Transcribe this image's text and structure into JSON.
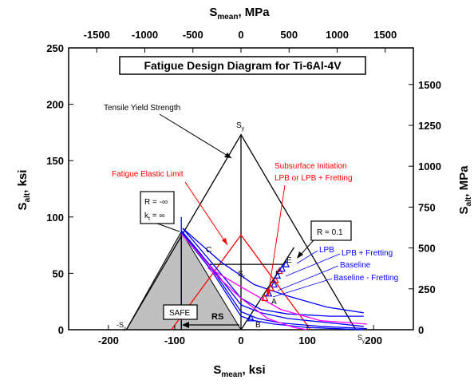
{
  "chart_data": {
    "type": "line",
    "title": "Fatigue Design Diagram for Ti-6Al-4V",
    "x_axis_bottom": {
      "label_main": "S",
      "label_sub": "mean",
      "label_unit": ", ksi",
      "xlim": [
        -260,
        260
      ],
      "ticks": [
        -200,
        -100,
        0,
        100,
        200
      ],
      "tick_labels": [
        "-200",
        "-100",
        "0",
        "100",
        "200"
      ]
    },
    "x_axis_top": {
      "label_main": "S",
      "label_sub": "mean",
      "label_unit": ", MPa",
      "ticks": [
        -1500,
        -1000,
        -500,
        0,
        500,
        1000,
        1500
      ],
      "tick_labels": [
        "-1500",
        "-1000",
        "-500",
        "0",
        "500",
        "1000",
        "1500"
      ]
    },
    "y_axis_left": {
      "label_main": "S",
      "label_sub": "alt",
      "label_unit": ", ksi",
      "ylim": [
        0,
        250
      ],
      "ticks": [
        0,
        50,
        100,
        150,
        200,
        250
      ],
      "tick_labels": [
        "0",
        "50",
        "100",
        "150",
        "200",
        "250"
      ]
    },
    "y_axis_right": {
      "label_main": "S",
      "label_sub": "alt",
      "label_unit": ", MPa",
      "ticks": [
        0,
        250,
        500,
        750,
        1000,
        1250,
        1500
      ],
      "tick_labels": [
        "0",
        "250",
        "500",
        "750",
        "1000",
        "1250",
        "1500"
      ]
    },
    "grid": false,
    "lines": [
      {
        "name": "yield-triangle",
        "color": "#000000",
        "points": [
          [
            -173,
            0
          ],
          [
            0,
            173
          ],
          [
            173,
            0
          ]
        ]
      },
      {
        "name": "axis-vertical",
        "color": "#000000",
        "points": [
          [
            0,
            0
          ],
          [
            0,
            173
          ]
        ]
      },
      {
        "name": "elastic-limit",
        "color": "#ff0000",
        "points": [
          [
            -105,
            0
          ],
          [
            0,
            84
          ],
          [
            105,
            0
          ]
        ]
      },
      {
        "name": "r-010-line",
        "color": "#000000",
        "points": [
          [
            0,
            0
          ],
          [
            80,
            73
          ]
        ]
      },
      {
        "name": "c-e-line",
        "color": "#000000",
        "points": [
          [
            -50,
            58
          ],
          [
            65,
            58
          ]
        ]
      },
      {
        "name": "vertical-blue",
        "color": "#0000ff",
        "points": [
          [
            -90,
            0
          ],
          [
            -90,
            100
          ]
        ]
      },
      {
        "name": "vertical-black",
        "color": "#000000",
        "points": [
          [
            -90,
            0
          ],
          [
            -90,
            86
          ]
        ]
      },
      {
        "name": "LPB",
        "color": "#0000ff",
        "points": [
          [
            -88,
            90
          ],
          [
            -42,
            58
          ],
          [
            0,
            28
          ],
          [
            30,
            18
          ],
          [
            70,
            14
          ],
          [
            135,
            12
          ],
          [
            185,
            12
          ]
        ]
      },
      {
        "name": "LPB + Fretting",
        "color": "#0000ff",
        "points": [
          [
            -90,
            88
          ],
          [
            -45,
            56
          ],
          [
            0,
            22
          ],
          [
            30,
            15
          ],
          [
            70,
            10
          ],
          [
            135,
            6
          ],
          [
            185,
            3
          ]
        ]
      },
      {
        "name": "Baseline",
        "color": "#0000ff",
        "points": [
          [
            -90,
            87
          ],
          [
            -45,
            55
          ],
          [
            0,
            16
          ],
          [
            25,
            10
          ],
          [
            60,
            6
          ],
          [
            120,
            3
          ],
          [
            190,
            1
          ]
        ]
      },
      {
        "name": "Baseline - Fretting",
        "color": "#0000ff",
        "points": [
          [
            -90,
            86
          ],
          [
            -45,
            53
          ],
          [
            0,
            12
          ],
          [
            20,
            8
          ],
          [
            50,
            5
          ],
          [
            100,
            2
          ],
          [
            185,
            0
          ]
        ]
      },
      {
        "name": "upper-blue",
        "color": "#0000ff",
        "points": [
          [
            -88,
            90
          ],
          [
            -30,
            60
          ],
          [
            20,
            40
          ],
          [
            70,
            30
          ],
          [
            130,
            20
          ],
          [
            185,
            15
          ]
        ]
      },
      {
        "name": "magenta-1",
        "color": "#ff00ff",
        "points": [
          [
            -90,
            85
          ],
          [
            -40,
            52
          ],
          [
            0,
            38
          ],
          [
            60,
            18
          ],
          [
            120,
            8
          ],
          [
            190,
            5
          ]
        ]
      },
      {
        "name": "magenta-2",
        "color": "#ff00ff",
        "points": [
          [
            -50,
            55
          ],
          [
            0,
            28
          ],
          [
            40,
            10
          ],
          [
            80,
            2
          ],
          [
            100,
            0
          ]
        ]
      }
    ],
    "points": [
      {
        "x": 36,
        "y": 28,
        "color": "#ff0000"
      },
      {
        "x": 45,
        "y": 37,
        "color": "#ff0000"
      },
      {
        "x": 52,
        "y": 44,
        "color": "#ff0000"
      },
      {
        "x": 58,
        "y": 52,
        "color": "#ff0000"
      },
      {
        "x": 42,
        "y": 32,
        "color": "#0000ff"
      },
      {
        "x": 50,
        "y": 40,
        "color": "#0000ff"
      },
      {
        "x": 55,
        "y": 48,
        "color": "#0000ff"
      },
      {
        "x": 62,
        "y": 54,
        "color": "#0000ff"
      },
      {
        "x": 68,
        "y": 58,
        "color": "#0000ff"
      },
      {
        "x": 15,
        "y": 10,
        "color": "#0000ff"
      }
    ],
    "annotations": {
      "tensile_yield": "Tensile Yield Strength",
      "sy_top": "S",
      "sy_sub": "y",
      "sy_left_main": "-S",
      "sy_left_sub": "y",
      "sy_right_main": "S",
      "sy_right_sub": "y",
      "fatigue_elastic": "Fatigue Elastic Limit",
      "subsurface_line1": "Subsurface Initiation",
      "subsurface_line2": "LPB or LPB + Fretting",
      "r_inf_line1": "R = -∞",
      "r_inf_kt_main": "k",
      "r_inf_kt_sub": "t",
      "r_inf_kt_rest": " = ∞",
      "r_01": "R = 0.1",
      "safe": "SAFE",
      "rs": "RS",
      "pt_c": "C",
      "pt_e": "E",
      "pt_f": "F",
      "pt_a": "A",
      "pt_b": "B",
      "pt_s_main": "S",
      "pt_s_sub": "r",
      "legend_lpb": "LPB",
      "legend_lpb_fretting": "LPB + Fretting",
      "legend_baseline": "Baseline",
      "legend_baseline_fretting": "Baseline - Fretting"
    }
  }
}
